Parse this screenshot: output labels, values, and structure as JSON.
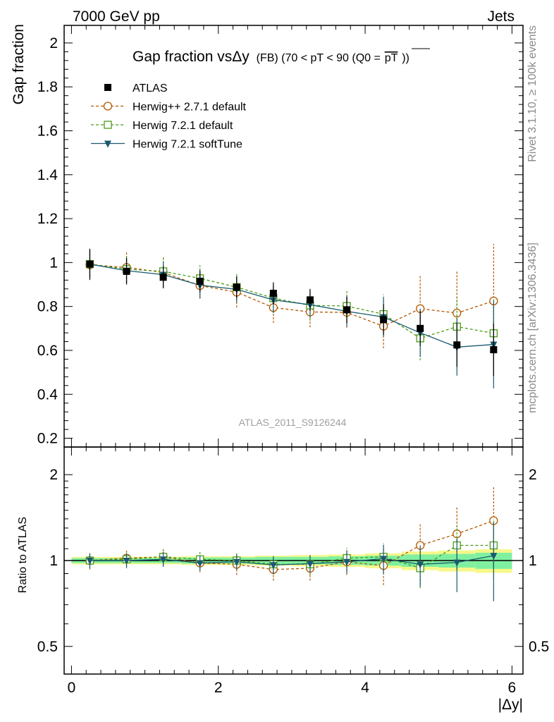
{
  "header": {
    "left": "7000 GeV pp",
    "right": "Jets"
  },
  "side_labels": {
    "rivet": "Rivet 3.1.10, ≥ 100k events",
    "mcplots": "mcplots.cern.ch [arXiv:1306.3436]"
  },
  "colors": {
    "atlas": "#000000",
    "herwigpp": "#b35900",
    "herwig721": "#4d9a1a",
    "softtune": "#1a5a6e",
    "band_inner": "#7ff0a0",
    "band_outer": "#f7f78a"
  },
  "chart_data": [
    {
      "type": "scatter",
      "title": "Gap fraction vsΔy",
      "title_suffix": "(FB) (70 < pT <  90 (Q0 =",
      "title_over": "pT",
      "title_close": "))",
      "ylabel": "Gap fraction",
      "xlabel": "",
      "watermark": "ATLAS_2011_S9126244",
      "xlim": [
        -0.1,
        6.15
      ],
      "ylim": [
        0.16,
        2.08
      ],
      "yticks": [
        "0.2",
        "0.4",
        "0.6",
        "0.8",
        "1",
        "1.2",
        "1.4",
        "1.6",
        "1.8",
        "2"
      ],
      "x": [
        0.25,
        0.75,
        1.25,
        1.75,
        2.25,
        2.75,
        3.25,
        3.75,
        4.25,
        4.75,
        5.25,
        5.75
      ],
      "series": [
        {
          "name": "ATLAS",
          "key": "atlas",
          "marker": "filled-square",
          "line": "none",
          "values": [
            0.993,
            0.96,
            0.933,
            0.915,
            0.888,
            0.86,
            0.83,
            0.785,
            0.74,
            0.7,
            0.625,
            0.603
          ],
          "err": [
            0.07,
            0.06,
            0.05,
            0.05,
            0.05,
            0.05,
            0.05,
            0.06,
            0.07,
            0.08,
            0.1,
            0.12
          ]
        },
        {
          "name": "Herwig++ 2.7.1 default",
          "key": "herwigpp",
          "marker": "open-circle",
          "line": "dashed",
          "values": [
            0.99,
            0.978,
            0.955,
            0.895,
            0.865,
            0.795,
            0.775,
            0.773,
            0.71,
            0.79,
            0.77,
            0.825
          ],
          "err": [
            0.07,
            0.07,
            0.07,
            0.06,
            0.07,
            0.07,
            0.07,
            0.07,
            0.1,
            0.15,
            0.19,
            0.26
          ]
        },
        {
          "name": "Herwig 7.2.1 default",
          "key": "herwig721",
          "marker": "open-square",
          "line": "dashed",
          "values": [
            0.993,
            0.97,
            0.96,
            0.928,
            0.888,
            0.838,
            0.805,
            0.802,
            0.765,
            0.655,
            0.708,
            0.678
          ],
          "err": [
            0.06,
            0.06,
            0.06,
            0.06,
            0.06,
            0.06,
            0.07,
            0.07,
            0.09,
            0.1,
            0.13,
            0.16
          ]
        },
        {
          "name": "Herwig 7.2.1 softTune",
          "key": "softtune",
          "marker": "filled-triangle-down",
          "line": "solid",
          "values": [
            0.993,
            0.963,
            0.945,
            0.897,
            0.878,
            0.83,
            0.808,
            0.778,
            0.752,
            0.68,
            0.615,
            0.627
          ],
          "err": [
            0.06,
            0.06,
            0.06,
            0.06,
            0.06,
            0.06,
            0.06,
            0.07,
            0.09,
            0.11,
            0.13,
            0.2
          ]
        }
      ]
    },
    {
      "type": "scatter",
      "ylabel": "Ratio to ATLAS",
      "xlabel": "|Δy|",
      "xlim": [
        -0.1,
        6.15
      ],
      "ylim": [
        0.4,
        2.5
      ],
      "yscale": "log",
      "yticks": [
        "0.5",
        "1",
        "2"
      ],
      "xticks": [
        "0",
        "2",
        "4",
        "6"
      ],
      "x": [
        0.25,
        0.75,
        1.25,
        1.75,
        2.25,
        2.75,
        3.25,
        3.75,
        4.25,
        4.75,
        5.25,
        5.75
      ],
      "band_inner": [
        0.02,
        0.02,
        0.02,
        0.025,
        0.025,
        0.03,
        0.03,
        0.035,
        0.04,
        0.05,
        0.055,
        0.065
      ],
      "band_outer": [
        0.03,
        0.03,
        0.03,
        0.035,
        0.035,
        0.04,
        0.045,
        0.05,
        0.06,
        0.075,
        0.085,
        0.095
      ],
      "series": [
        {
          "name": "Herwig++ 2.7.1 default",
          "key": "herwigpp",
          "marker": "open-circle",
          "line": "dashed",
          "values": [
            1.0,
            1.02,
            1.03,
            0.98,
            0.97,
            0.93,
            0.94,
            0.99,
            0.96,
            1.13,
            1.24,
            1.38
          ],
          "err": [
            0.07,
            0.07,
            0.07,
            0.07,
            0.08,
            0.08,
            0.09,
            0.1,
            0.14,
            0.22,
            0.31,
            0.43
          ]
        },
        {
          "name": "Herwig 7.2.1 default",
          "key": "herwig721",
          "marker": "open-square",
          "line": "dashed",
          "values": [
            1.0,
            1.01,
            1.03,
            1.01,
            1.0,
            0.97,
            0.97,
            1.02,
            1.03,
            0.94,
            1.13,
            1.13
          ],
          "err": [
            0.06,
            0.06,
            0.07,
            0.07,
            0.07,
            0.07,
            0.08,
            0.09,
            0.12,
            0.14,
            0.2,
            0.27
          ]
        },
        {
          "name": "Herwig 7.2.1 softTune",
          "key": "softtune",
          "marker": "filled-triangle-down",
          "line": "solid",
          "values": [
            1.0,
            1.0,
            1.01,
            0.98,
            0.99,
            0.965,
            0.975,
            0.99,
            1.015,
            0.97,
            0.985,
            1.04
          ],
          "err": [
            0.06,
            0.06,
            0.06,
            0.06,
            0.06,
            0.07,
            0.07,
            0.09,
            0.12,
            0.16,
            0.21,
            0.32
          ]
        }
      ]
    }
  ]
}
